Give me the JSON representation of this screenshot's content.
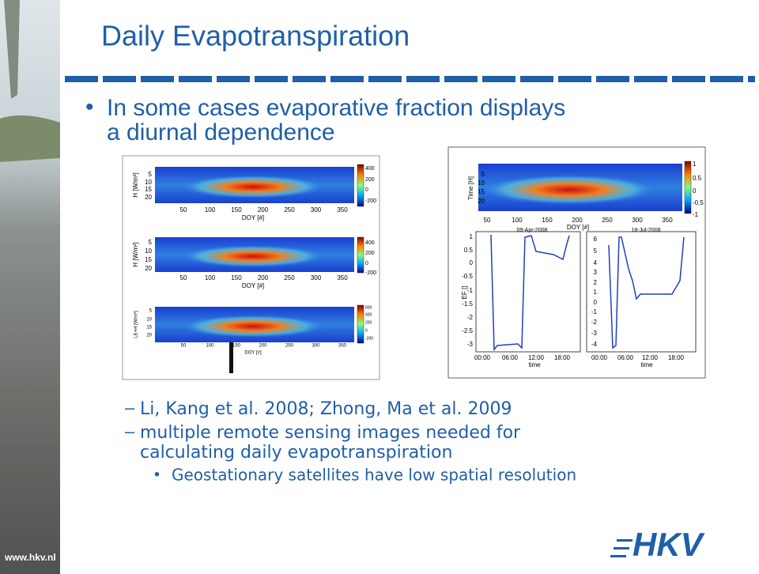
{
  "title": "Daily Evapotranspiration",
  "bullet": "In some cases evaporative fraction displays a diurnal dependence",
  "subbullets": [
    "Li, Kang et al. 2008; Zhong, Ma et al. 2009",
    "multiple remote sensing images needed for calculating daily evapotranspiration"
  ],
  "subsubbullet": "Geostationary satellites have low spatial resolution",
  "left_figure": {
    "panels": [
      {
        "ylabel": "H [W/m²]",
        "yticks": [
          "5",
          "10",
          "15",
          "20"
        ],
        "xticks": [
          "50",
          "100",
          "150",
          "200",
          "250",
          "300",
          "350"
        ],
        "xlabel": "DOY [#]",
        "colorbar": [
          "400",
          "200",
          "0",
          "-200"
        ]
      },
      {
        "ylabel": "H [W/m²]",
        "yticks": [
          "5",
          "10",
          "15",
          "20"
        ],
        "xticks": [
          "50",
          "100",
          "150",
          "200",
          "250",
          "300",
          "350"
        ],
        "xlabel": "DOY [#]",
        "colorbar": [
          "400",
          "200",
          "0",
          "-200"
        ]
      },
      {
        "ylabel": "LE+H [W/m²]",
        "yticks": [
          "5",
          "10",
          "15",
          "20"
        ],
        "xticks": [
          "50",
          "100",
          "150",
          "200",
          "250",
          "300",
          "350"
        ],
        "xlabel": "DOY [#]",
        "colorbar": [
          "600",
          "400",
          "200",
          "0",
          "-200"
        ]
      }
    ]
  },
  "right_figure": {
    "heatmap": {
      "ylabel": "Time [H]",
      "yticks": [
        "5",
        "10",
        "15",
        "20"
      ],
      "xticks": [
        "50",
        "100",
        "150",
        "200",
        "250",
        "300",
        "350"
      ],
      "xlabel": "DOY [#]",
      "dates": [
        "09-Apr-2008",
        "18-Jul-2008"
      ],
      "colorbar": [
        "1",
        "0.5",
        "0",
        "-0.5",
        "-1"
      ]
    },
    "plots": [
      {
        "ylabel": "EF []",
        "yticks": [
          "1",
          "0.5",
          "0",
          "-0.5",
          "-1",
          "-1.5",
          "-2",
          "-2.5",
          "-3"
        ],
        "xticks": [
          "00:00",
          "06:00",
          "12:00",
          "18:00"
        ],
        "xlabel": "time"
      },
      {
        "yticks": [
          "6",
          "5",
          "4",
          "3",
          "2",
          "1",
          "0",
          "-1",
          "-2",
          "-3",
          "-4"
        ],
        "xticks": [
          "00:00",
          "06:00",
          "12:00",
          "18:00"
        ],
        "xlabel": "time"
      }
    ]
  },
  "footer_url": "www.hkv.nl",
  "logo": "HKV"
}
